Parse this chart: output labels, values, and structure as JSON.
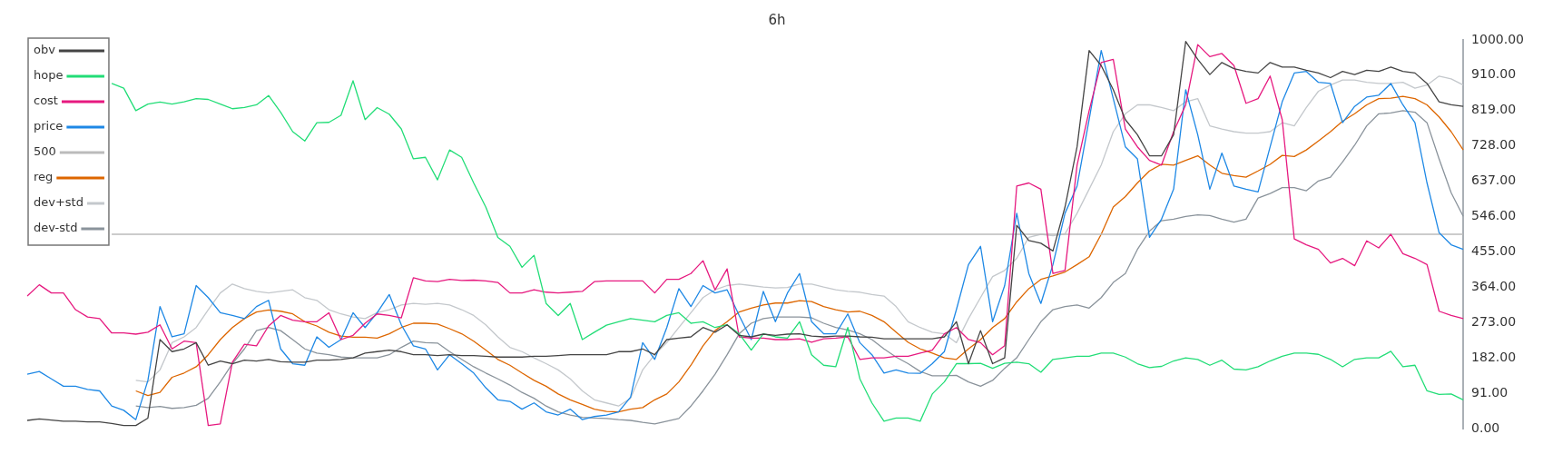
{
  "chart_data": {
    "type": "line",
    "title": "6h",
    "categories": [
      null,
      null,
      null,
      null,
      null,
      null,
      null,
      null,
      null,
      null,
      null,
      null,
      null,
      null,
      null,
      null,
      null,
      null,
      null,
      null,
      null,
      null,
      null,
      null,
      null,
      null,
      null,
      null,
      null,
      null,
      null,
      null,
      null,
      null,
      null,
      null,
      null,
      null,
      null,
      null,
      null,
      null,
      null,
      null,
      null,
      null,
      null,
      null,
      null,
      null,
      null,
      null,
      null,
      null,
      null,
      null,
      null,
      null,
      null,
      null,
      null,
      null,
      null,
      null,
      null,
      null,
      null,
      null,
      null,
      null,
      null,
      null,
      null,
      null,
      null,
      null,
      null,
      null,
      null,
      null,
      null,
      null,
      null,
      null,
      null,
      null,
      null,
      null,
      null,
      null,
      null,
      null,
      null,
      null,
      null,
      null,
      null,
      null,
      null,
      null,
      null,
      null,
      null,
      null,
      null,
      null,
      null,
      null,
      null,
      null,
      null,
      null,
      null,
      null,
      null,
      null,
      null,
      null,
      null,
      null
    ],
    "ylim": [
      0,
      1000
    ],
    "yticks": [
      {
        "value": 0,
        "label": "0.00"
      },
      {
        "value": 91,
        "label": "91.00"
      },
      {
        "value": 182,
        "label": "182.00"
      },
      {
        "value": 273,
        "label": "273.00"
      },
      {
        "value": 364,
        "label": "364.00"
      },
      {
        "value": 455,
        "label": "455.00"
      },
      {
        "value": 546,
        "label": "546.00"
      },
      {
        "value": 637,
        "label": "637.00"
      },
      {
        "value": 728,
        "label": "728.00"
      },
      {
        "value": 819,
        "label": "819.00"
      },
      {
        "value": 910,
        "label": "910.00"
      },
      {
        "value": 1000,
        "label": "1000.00"
      }
    ],
    "tick_labels": "y",
    "grid": false,
    "legend": "top left",
    "marker": "none",
    "line_style": "solid",
    "series": [
      {
        "name": "obv",
        "color": "#444444",
        "values": [
          21,
          25,
          22,
          19,
          19,
          17,
          17,
          13,
          8,
          8,
          27,
          229,
          198,
          205,
          221,
          163,
          174,
          167,
          176,
          174,
          178,
          172,
          171,
          171,
          176,
          176,
          178,
          182,
          194,
          198,
          202,
          198,
          190,
          190,
          188,
          190,
          188,
          188,
          186,
          184,
          184,
          184,
          186,
          186,
          188,
          190,
          190,
          190,
          190,
          198,
          198,
          205,
          190,
          229,
          233,
          236,
          260,
          248,
          267,
          240,
          236,
          243,
          240,
          243,
          244,
          238,
          236,
          238,
          238,
          236,
          235,
          231,
          231,
          231,
          231,
          231,
          236,
          275,
          167,
          252,
          167,
          182,
          523,
          484,
          477,
          457,
          570,
          725,
          973,
          934,
          872,
          795,
          756,
          702,
          702,
          756,
          996,
          950,
          911,
          942,
          926,
          919,
          915,
          942,
          930,
          930,
          922,
          915,
          903,
          919,
          911,
          922,
          919,
          930,
          919,
          915,
          888,
          841,
          833,
          829
        ]
      },
      {
        "name": "hope",
        "color": "#22dd77",
        "values": [
          null,
          null,
          null,
          null,
          null,
          null,
          null,
          888,
          876,
          818,
          835,
          840,
          835,
          841,
          849,
          847,
          835,
          823,
          826,
          833,
          857,
          814,
          764,
          740,
          787,
          788,
          806,
          895,
          795,
          826,
          809,
          771,
          694,
          698,
          640,
          717,
          698,
          632,
          570,
          492,
          469,
          415,
          446,
          322,
          291,
          322,
          229,
          248,
          266,
          275,
          283,
          279,
          275,
          291,
          298,
          271,
          275,
          260,
          267,
          244,
          202,
          244,
          236,
          233,
          275,
          190,
          163,
          159,
          260,
          128,
          66,
          19,
          27,
          27,
          19,
          89,
          120,
          167,
          167,
          168,
          155,
          168,
          171,
          167,
          145,
          178,
          182,
          186,
          186,
          194,
          194,
          184,
          167,
          157,
          160,
          174,
          182,
          178,
          163,
          176,
          153,
          151,
          159,
          174,
          186,
          194,
          194,
          191,
          178,
          159,
          178,
          182,
          182,
          199,
          159,
          163,
          97,
          88,
          89,
          74
        ]
      },
      {
        "name": "cost",
        "color": "#e6197f",
        "values": [
          341,
          370,
          349,
          349,
          306,
          287,
          283,
          246,
          246,
          243,
          248,
          267,
          205,
          225,
          221,
          8,
          12,
          171,
          217,
          213,
          264,
          291,
          279,
          275,
          275,
          298,
          229,
          240,
          271,
          295,
          291,
          285,
          388,
          380,
          378,
          384,
          381,
          382,
          380,
          376,
          349,
          349,
          357,
          351,
          349,
          351,
          353,
          378,
          380,
          380,
          380,
          380,
          349,
          384,
          384,
          399,
          432,
          357,
          411,
          236,
          233,
          233,
          229,
          229,
          231,
          222,
          231,
          233,
          236,
          178,
          182,
          182,
          186,
          186,
          194,
          202,
          244,
          260,
          229,
          221,
          190,
          213,
          624,
          632,
          616,
          399,
          407,
          678,
          818,
          942,
          950,
          771,
          725,
          690,
          678,
          764,
          833,
          988,
          957,
          965,
          934,
          837,
          849,
          907,
          795,
          488,
          473,
          461,
          426,
          438,
          419,
          483,
          465,
          500,
          450,
          438,
          422,
          302,
          291,
          283
        ]
      },
      {
        "name": "price",
        "color": "#1e88e5",
        "values": [
          140,
          147,
          128,
          109,
          109,
          101,
          97,
          58,
          47,
          23,
          124,
          314,
          236,
          244,
          368,
          337,
          298,
          291,
          283,
          314,
          330,
          205,
          167,
          163,
          236,
          209,
          229,
          298,
          260,
          298,
          345,
          267,
          213,
          205,
          151,
          190,
          167,
          143,
          105,
          74,
          70,
          50,
          66,
          43,
          35,
          50,
          23,
          31,
          35,
          43,
          81,
          221,
          178,
          260,
          360,
          314,
          368,
          349,
          357,
          291,
          229,
          353,
          275,
          349,
          399,
          275,
          244,
          244,
          295,
          221,
          190,
          143,
          151,
          143,
          142,
          167,
          198,
          306,
          422,
          469,
          275,
          368,
          554,
          399,
          322,
          422,
          554,
          624,
          795,
          973,
          849,
          725,
          694,
          492,
          539,
          616,
          872,
          756,
          616,
          709,
          624,
          616,
          609,
          725,
          841,
          915,
          919,
          891,
          888,
          787,
          829,
          853,
          858,
          888,
          833,
          787,
          632,
          504,
          473,
          461
        ]
      },
      {
        "name": "500",
        "color": "#bbbbbb",
        "values": [
          null,
          null,
          null,
          null,
          null,
          null,
          null,
          500,
          500,
          500,
          500,
          500,
          500,
          500,
          500,
          500,
          500,
          500,
          500,
          500,
          500,
          500,
          500,
          500,
          500,
          500,
          500,
          500,
          500,
          500,
          500,
          500,
          500,
          500,
          500,
          500,
          500,
          500,
          500,
          500,
          500,
          500,
          500,
          500,
          500,
          500,
          500,
          500,
          500,
          500,
          500,
          500,
          500,
          500,
          500,
          500,
          500,
          500,
          500,
          500,
          500,
          500,
          500,
          500,
          500,
          500,
          500,
          500,
          500,
          500,
          500,
          500,
          500,
          500,
          500,
          500,
          500,
          500,
          500,
          500,
          500,
          500,
          500,
          500,
          500,
          500,
          500,
          500,
          500,
          500,
          500,
          500,
          500,
          500,
          500,
          500,
          500,
          500,
          500,
          500,
          500,
          500,
          500,
          500,
          500,
          500,
          500,
          500,
          500,
          500,
          500,
          500,
          500,
          500,
          500,
          500,
          500,
          500,
          500,
          500
        ]
      },
      {
        "name": "reg",
        "color": "#dd6600",
        "values": [
          null,
          null,
          null,
          null,
          null,
          null,
          null,
          null,
          null,
          97,
          85,
          93,
          132,
          143,
          159,
          190,
          229,
          260,
          283,
          300,
          305,
          302,
          295,
          275,
          264,
          248,
          238,
          235,
          235,
          233,
          244,
          260,
          271,
          271,
          269,
          257,
          244,
          225,
          202,
          178,
          163,
          143,
          124,
          109,
          89,
          74,
          62,
          50,
          44,
          43,
          50,
          54,
          74,
          89,
          120,
          163,
          213,
          252,
          275,
          300,
          310,
          318,
          323,
          323,
          329,
          327,
          314,
          306,
          300,
          302,
          291,
          275,
          248,
          222,
          205,
          194,
          182,
          178,
          205,
          229,
          260,
          283,
          326,
          360,
          384,
          393,
          403,
          422,
          442,
          500,
          570,
          597,
          632,
          663,
          680,
          678,
          690,
          702,
          678,
          657,
          651,
          647,
          663,
          680,
          703,
          700,
          717,
          740,
          764,
          791,
          810,
          833,
          849,
          850,
          855,
          849,
          833,
          802,
          764,
          717
        ]
      },
      {
        "name": "dev+std",
        "color": "#c4c8cc",
        "values": [
          null,
          null,
          null,
          null,
          null,
          null,
          null,
          null,
          null,
          124,
          120,
          151,
          221,
          236,
          260,
          306,
          349,
          372,
          360,
          353,
          349,
          353,
          357,
          337,
          330,
          306,
          295,
          287,
          283,
          298,
          306,
          318,
          322,
          320,
          322,
          318,
          306,
          291,
          267,
          236,
          209,
          198,
          182,
          167,
          151,
          128,
          97,
          74,
          66,
          58,
          78,
          151,
          190,
          221,
          260,
          298,
          337,
          357,
          368,
          372,
          368,
          364,
          362,
          363,
          372,
          372,
          364,
          357,
          353,
          351,
          345,
          341,
          314,
          275,
          260,
          248,
          244,
          221,
          283,
          337,
          391,
          407,
          438,
          492,
          500,
          496,
          501,
          554,
          616,
          678,
          764,
          810,
          833,
          833,
          826,
          818,
          841,
          849,
          779,
          771,
          764,
          760,
          760,
          764,
          787,
          779,
          826,
          868,
          884,
          897,
          897,
          891,
          888,
          888,
          891,
          876,
          884,
          907,
          900,
          884
        ]
      },
      {
        "name": "dev-std",
        "color": "#8a939b",
        "values": [
          null,
          null,
          null,
          null,
          null,
          null,
          null,
          null,
          null,
          58,
          54,
          57,
          52,
          54,
          60,
          78,
          120,
          167,
          205,
          252,
          260,
          252,
          229,
          205,
          194,
          190,
          184,
          182,
          182,
          182,
          190,
          209,
          225,
          221,
          220,
          198,
          178,
          159,
          143,
          128,
          112,
          93,
          78,
          58,
          43,
          35,
          29,
          27,
          26,
          23,
          21,
          16,
          12,
          19,
          26,
          58,
          97,
          140,
          190,
          244,
          271,
          283,
          287,
          287,
          287,
          285,
          271,
          260,
          254,
          244,
          229,
          205,
          184,
          167,
          147,
          136,
          136,
          137,
          120,
          109,
          124,
          155,
          182,
          229,
          275,
          306,
          314,
          318,
          310,
          337,
          376,
          399,
          461,
          508,
          535,
          539,
          546,
          550,
          548,
          539,
          531,
          539,
          593,
          605,
          620,
          620,
          612,
          637,
          647,
          686,
          729,
          779,
          810,
          812,
          818,
          814,
          787,
          694,
          607,
          546
        ]
      }
    ]
  }
}
